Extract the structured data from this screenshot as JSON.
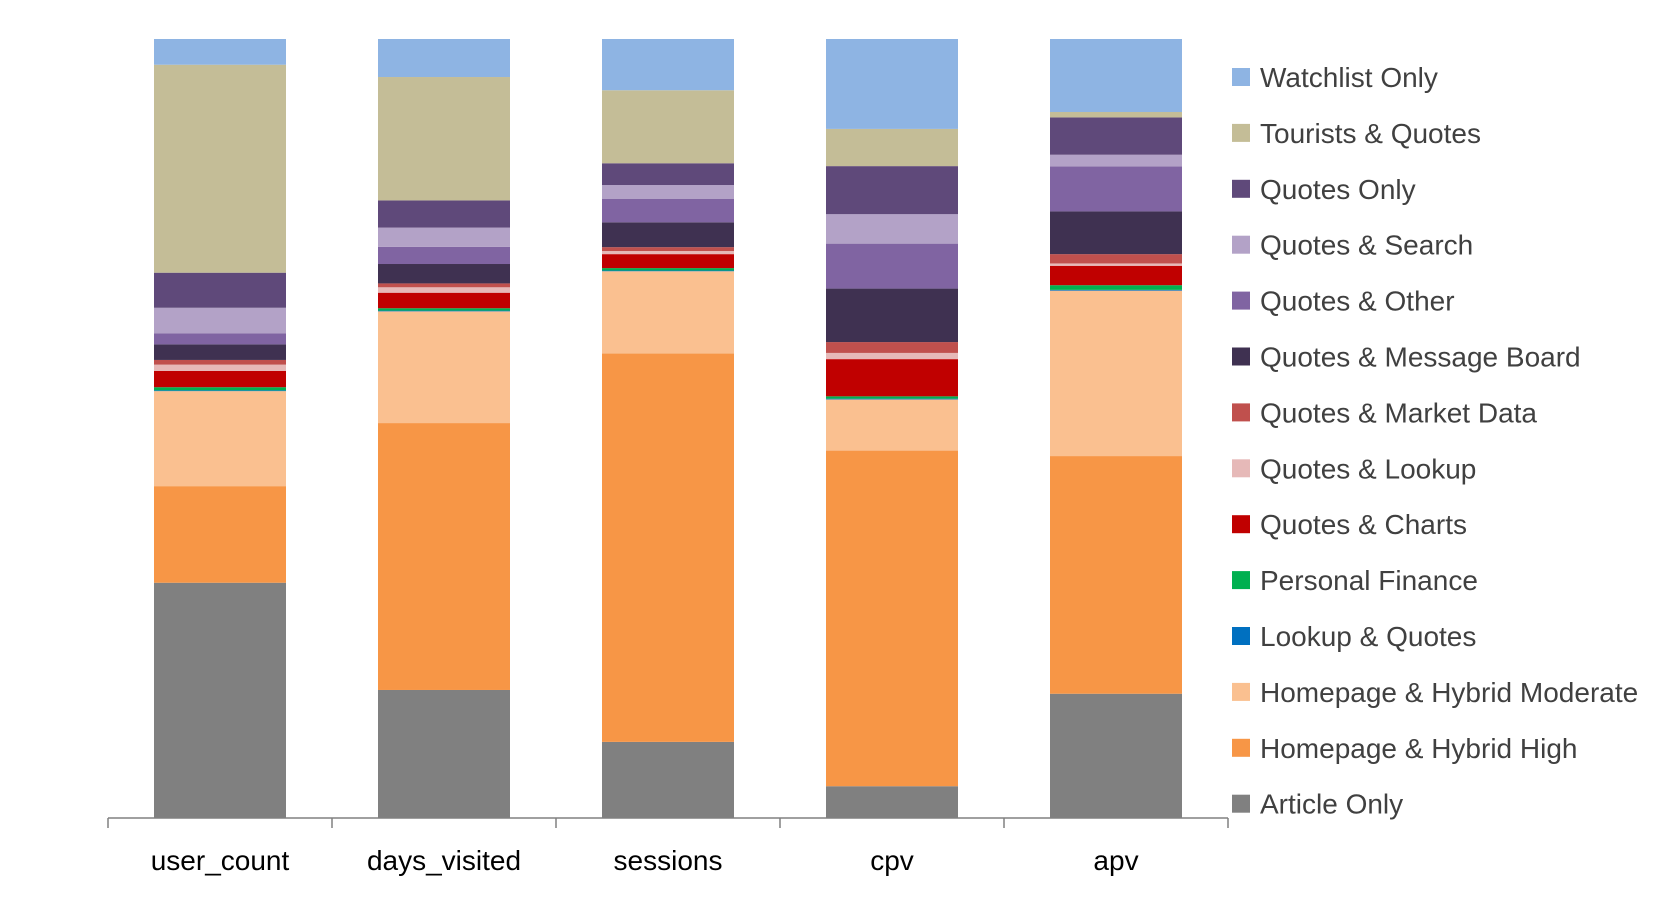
{
  "chart_data": {
    "type": "bar",
    "stacked": true,
    "normalized": true,
    "value_unit": "percent",
    "title": "",
    "xlabel": "",
    "ylabel": "",
    "ylim": [
      0,
      100
    ],
    "grid": false,
    "legend_position": "right",
    "categories": [
      "user_count",
      "days_visited",
      "sessions",
      "cpv",
      "apv"
    ],
    "series": [
      {
        "name": "Article Only",
        "color": "#808080",
        "values": [
          30.2,
          16.5,
          9.8,
          4.1,
          16.0
        ]
      },
      {
        "name": "Homepage & Hybrid High",
        "color": "#F79646",
        "values": [
          12.4,
          34.4,
          50.0,
          43.3,
          30.6
        ]
      },
      {
        "name": "Homepage & Hybrid Moderate",
        "color": "#FAC090",
        "values": [
          12.2,
          14.4,
          10.6,
          6.6,
          21.3
        ]
      },
      {
        "name": "Lookup & Quotes",
        "color": "#0070C0",
        "values": [
          0.1,
          0.1,
          0.1,
          0.1,
          0.1
        ]
      },
      {
        "name": "Personal Finance",
        "color": "#00B050",
        "values": [
          0.4,
          0.3,
          0.3,
          0.3,
          0.6
        ]
      },
      {
        "name": "Quotes & Charts",
        "color": "#C00000",
        "values": [
          2.1,
          2.0,
          1.8,
          4.8,
          2.5
        ]
      },
      {
        "name": "Quotes & Lookup",
        "color": "#E6B9B8",
        "values": [
          0.8,
          0.7,
          0.4,
          0.8,
          0.3
        ]
      },
      {
        "name": "Quotes & Market Data",
        "color": "#C0504D",
        "values": [
          0.6,
          0.5,
          0.5,
          1.4,
          1.2
        ]
      },
      {
        "name": "Quotes & Message Board",
        "color": "#3F3151",
        "values": [
          2.0,
          2.5,
          3.2,
          6.9,
          5.5
        ]
      },
      {
        "name": "Quotes & Other",
        "color": "#8064A2",
        "values": [
          1.4,
          2.2,
          3.0,
          5.8,
          5.8
        ]
      },
      {
        "name": "Quotes & Search",
        "color": "#B3A2C7",
        "values": [
          3.3,
          2.5,
          1.8,
          3.8,
          1.5
        ]
      },
      {
        "name": "Quotes Only",
        "color": "#5F497A",
        "values": [
          4.5,
          3.5,
          2.8,
          6.2,
          4.8
        ]
      },
      {
        "name": "Tourists & Quotes",
        "color": "#C4BD97",
        "values": [
          26.7,
          15.9,
          9.4,
          4.8,
          0.7
        ]
      },
      {
        "name": "Watchlist Only",
        "color": "#8EB4E3",
        "values": [
          3.3,
          4.9,
          6.6,
          11.6,
          9.4
        ]
      }
    ]
  }
}
